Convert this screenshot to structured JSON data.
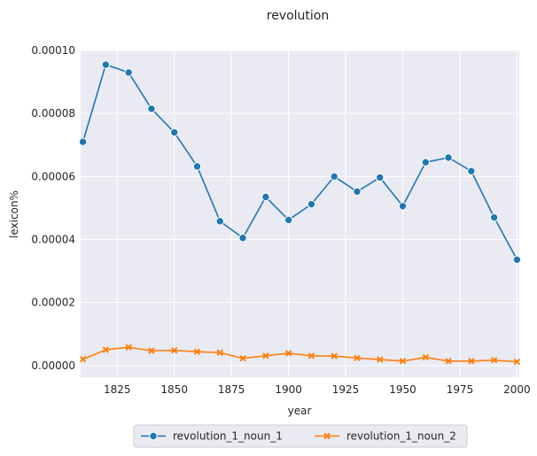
{
  "chart_data": {
    "type": "line",
    "title": "revolution",
    "xlabel": "year",
    "ylabel": "lexicon%",
    "xlim": [
      1809,
      2001
    ],
    "ylim": [
      -3.7e-06,
      0.0001
    ],
    "x_ticks": [
      1825,
      1850,
      1875,
      1900,
      1925,
      1950,
      1975,
      2000
    ],
    "x_tick_labels": [
      "1825",
      "1850",
      "1875",
      "1900",
      "1925",
      "1950",
      "1975",
      "2000"
    ],
    "y_ticks": [
      0.0,
      2e-05,
      4e-05,
      6e-05,
      8e-05,
      0.0001
    ],
    "y_tick_labels": [
      "0.00000",
      "0.00002",
      "0.00004",
      "0.00006",
      "0.00008",
      "0.00010"
    ],
    "grid": true,
    "legend_position": "bottom-center",
    "x": [
      1810,
      1820,
      1830,
      1840,
      1850,
      1860,
      1870,
      1880,
      1890,
      1900,
      1910,
      1920,
      1930,
      1940,
      1950,
      1960,
      1970,
      1980,
      1990,
      2000
    ],
    "series": [
      {
        "name": "revolution_1_noun_1",
        "color": "#1f77b4",
        "marker": "circle",
        "values": [
          7.1e-05,
          9.55e-05,
          9.3e-05,
          8.15e-05,
          7.4e-05,
          6.32e-05,
          4.58e-05,
          4.05e-05,
          5.35e-05,
          4.62e-05,
          5.12e-05,
          6e-05,
          5.52e-05,
          5.97e-05,
          5.06e-05,
          6.45e-05,
          6.6e-05,
          6.17e-05,
          4.7e-05,
          3.36e-05
        ]
      },
      {
        "name": "revolution_1_noun_2",
        "color": "#ff7f0e",
        "marker": "x",
        "values": [
          2e-06,
          5e-06,
          5.8e-06,
          4.7e-06,
          4.8e-06,
          4.4e-06,
          4.1e-06,
          2.3e-06,
          3.1e-06,
          3.9e-06,
          3.1e-06,
          3e-06,
          2.4e-06,
          1.9e-06,
          1.4e-06,
          2.6e-06,
          1.4e-06,
          1.4e-06,
          1.7e-06,
          1.2e-06
        ]
      }
    ]
  }
}
